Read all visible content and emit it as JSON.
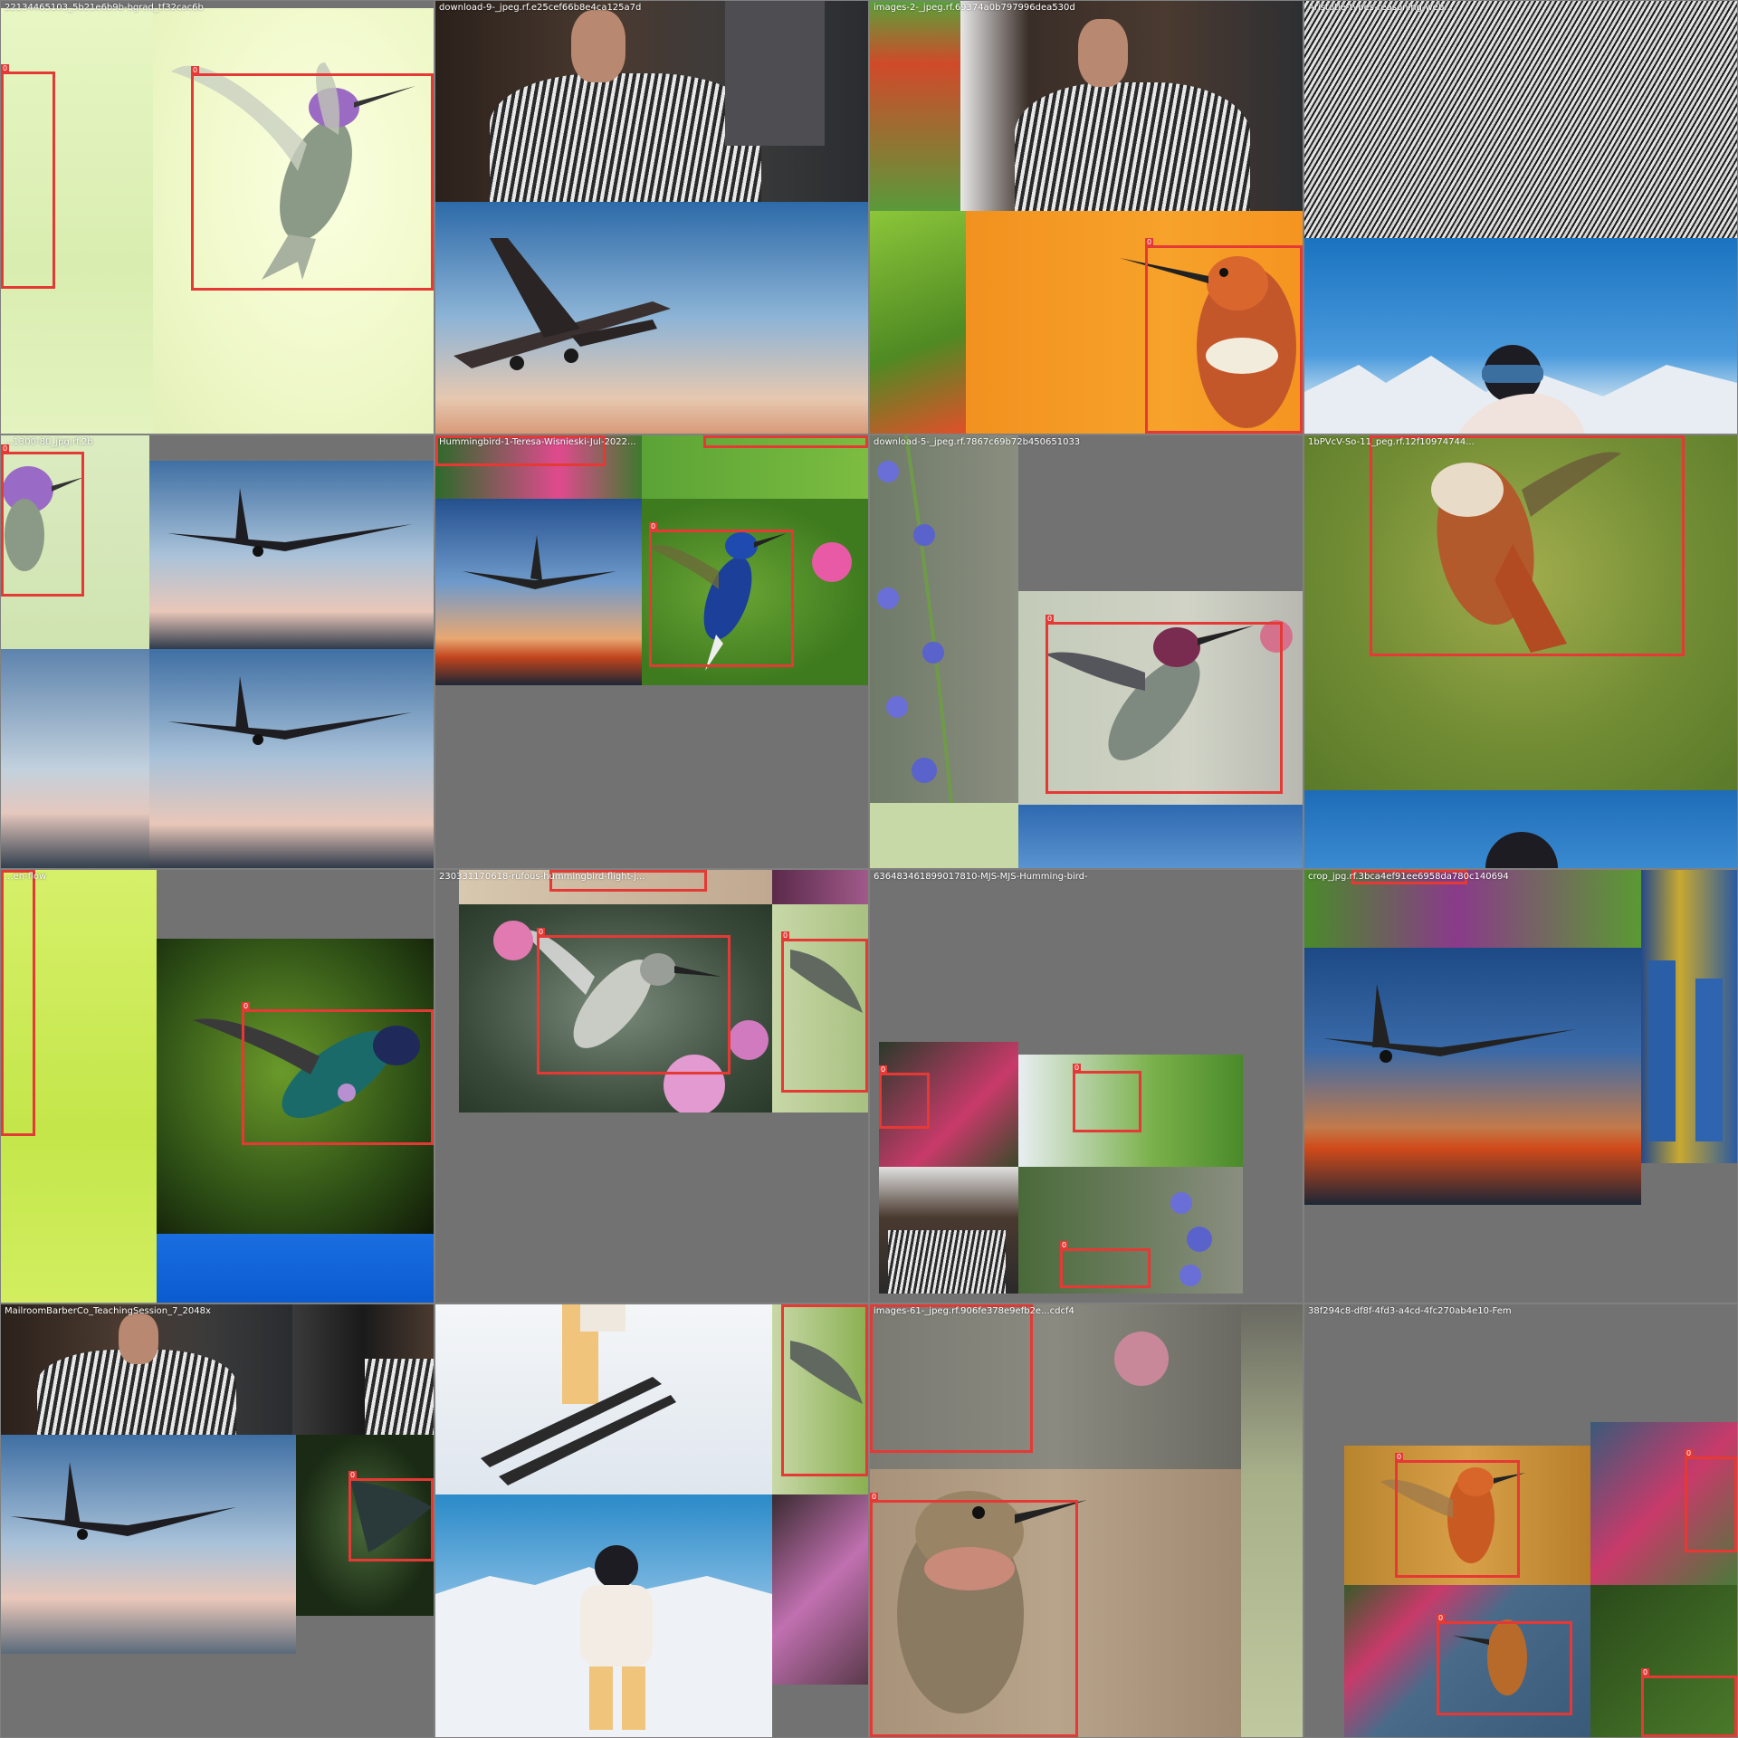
{
  "colors": {
    "box": "#e53935",
    "label_text": "#ffffff",
    "canvas": "#727272"
  },
  "box_label": "0",
  "tiles": [
    {
      "label": "22134465103_5b21e6b9b-bgrad_tf32cac6b"
    },
    {
      "label": "download-9-_jpeg.rf.e25cef66b8e4ca125a7d"
    },
    {
      "label": "images-2-_jpeg.rf.69374a0b797996dea530d"
    },
    {
      "label": "Aristotle-types-reasoning-web..."
    },
    {
      "label": "...1300-80_jpg.rf.2b"
    },
    {
      "label": "Hummingbird-1-Teresa-Wisnieski-Jul-2022..."
    },
    {
      "label": "download-5-_jpeg.rf.7867c69b72b450651033"
    },
    {
      "label": "1bPVcV-So-11_peg.rf.12f10974744..."
    },
    {
      "label": "...en-flow"
    },
    {
      "label": "230331170618-rufous-hummingbird-flight-j..."
    },
    {
      "label": "636483461899017810-MJS-MJS-Humming-bird-"
    },
    {
      "label": "crop_jpg.rf.3bca4ef91ee6958da780c140694"
    },
    {
      "label": "MailroomBarberCo_TeachingSession_7_2048x"
    },
    {
      "label": ""
    },
    {
      "label": "images-61-_jpeg.rf.906fe378e9efb2e...cdcf4"
    },
    {
      "label": "38f294c8-df8f-4fd3-a4cd-4fc270ab4e10-Fem"
    }
  ]
}
